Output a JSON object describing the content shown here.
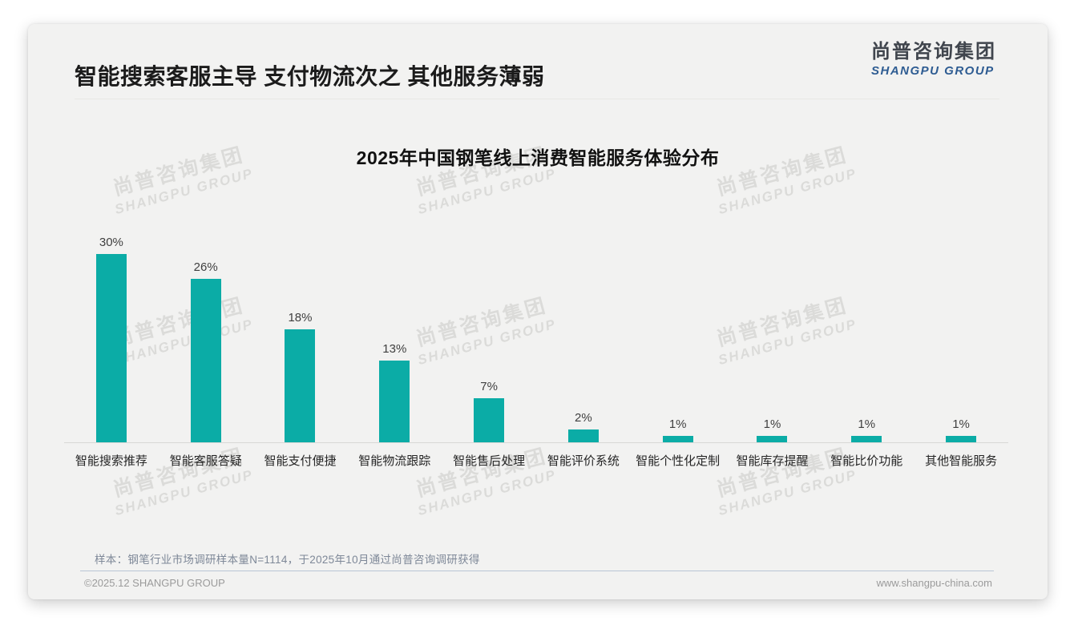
{
  "page": {
    "title": "智能搜索客服主导 支付物流次之 其他服务薄弱",
    "logo": {
      "cn": "尚普咨询集团",
      "en": "SHANGPU GROUP"
    },
    "watermark": {
      "line1": "尚普咨询集团",
      "line2": "SHANGPU GROUP"
    },
    "footnote": "样本：钢笔行业市场调研样本量N=1114，于2025年10月通过尚普咨询调研获得",
    "footer": {
      "copyright": "©2025.12 SHANGPU GROUP",
      "website": "www.shangpu-china.com"
    }
  },
  "colors": {
    "bar": "#0BACA6",
    "card_background": "#F2F2F1",
    "logo_en_blue": "#2E5C92",
    "footer_rule": "#B9C6D6"
  },
  "chart_data": {
    "type": "bar",
    "title": "2025年中国钢笔线上消费智能服务体验分布",
    "categories": [
      "智能搜索推荐",
      "智能客服答疑",
      "智能支付便捷",
      "智能物流跟踪",
      "智能售后处理",
      "智能评价系统",
      "智能个性化定制",
      "智能库存提醒",
      "智能比价功能",
      "其他智能服务"
    ],
    "values": [
      30,
      26,
      18,
      13,
      7,
      2,
      1,
      1,
      1,
      1
    ],
    "value_suffix": "%",
    "xlabel": "",
    "ylabel": "",
    "ylim": [
      0,
      30
    ],
    "grid": false,
    "legend": false,
    "bar_color": "#0BACA6"
  }
}
